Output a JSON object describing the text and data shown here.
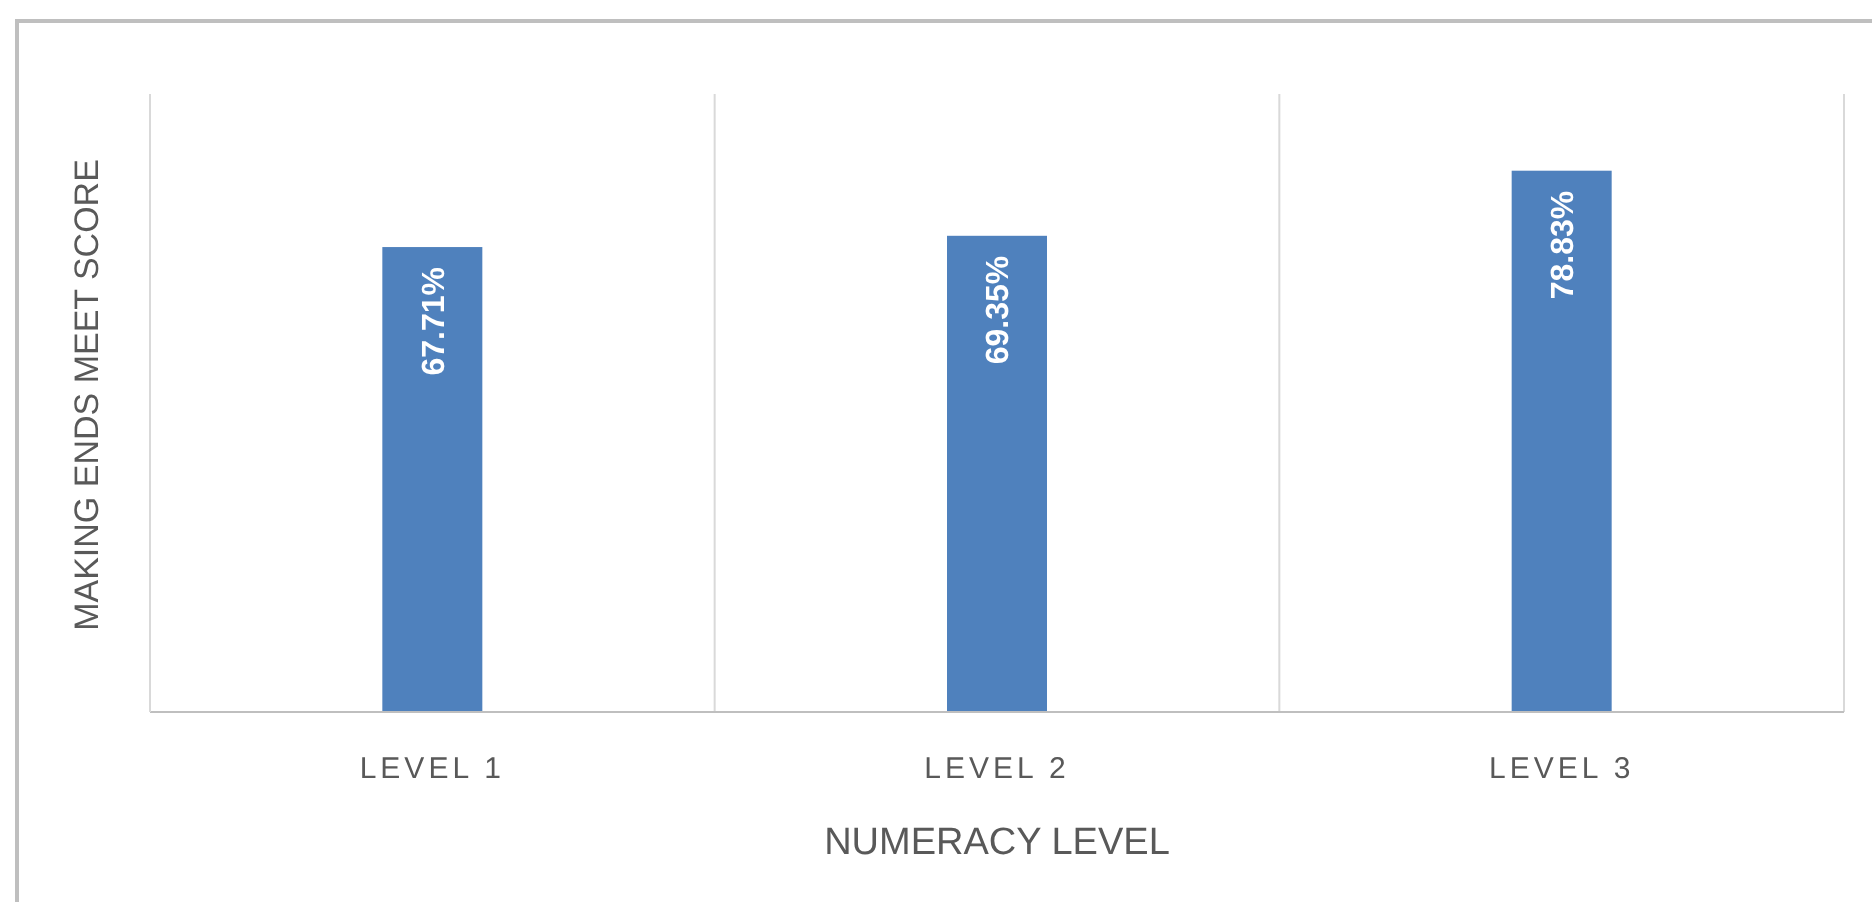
{
  "chart_data": {
    "type": "bar",
    "xlabel": "NUMERACY LEVEL",
    "ylabel": "MAKING ENDS MEET SCORE",
    "categories": [
      "LEVEL 1",
      "LEVEL 2",
      "LEVEL 3"
    ],
    "values": [
      67.71,
      69.35,
      78.83
    ],
    "color": "#4f81bd",
    "ylim": [
      0,
      90
    ],
    "value_labels": [
      "67.71%",
      "69.35%",
      "78.83%"
    ],
    "grid": "x",
    "tick_labels": "x"
  }
}
